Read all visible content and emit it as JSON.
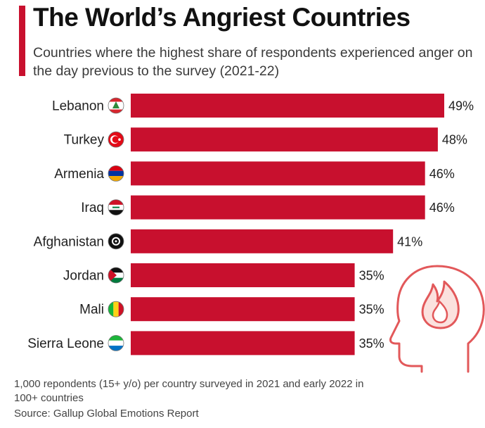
{
  "header": {
    "title": "The World’s Angriest Countries",
    "subtitle": "Countries where the highest share of respondents experienced anger on the day previous to the survey (2021-22)"
  },
  "footer": {
    "note": "1,000 repondents (15+ y/o) per country surveyed in 2021 and early 2022 in 100+ countries",
    "source": "Source: Gallup Global Emotions Report"
  },
  "colors": {
    "accent": "#c8102e",
    "bar": "#c8102e",
    "icon_outline": "#e2585a",
    "icon_fill": "#fbe1de"
  },
  "icons": [
    "country-flag-icon",
    "angry-head-flame-icon"
  ],
  "chart_data": {
    "type": "bar",
    "orientation": "horizontal",
    "categories": [
      "Lebanon",
      "Turkey",
      "Armenia",
      "Iraq",
      "Afghanistan",
      "Jordan",
      "Mali",
      "Sierra Leone"
    ],
    "values": [
      49,
      48,
      46,
      46,
      41,
      35,
      35,
      35
    ],
    "value_labels": [
      "49%",
      "48%",
      "46%",
      "46%",
      "41%",
      "35%",
      "35%",
      "35%"
    ],
    "unit": "%",
    "xlim": [
      0,
      49
    ],
    "grid": false,
    "legend": "none"
  }
}
